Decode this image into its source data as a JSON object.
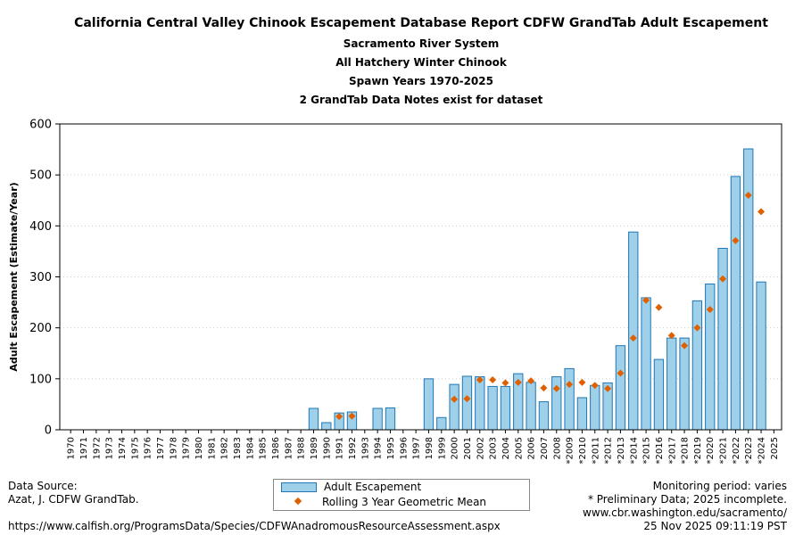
{
  "title": {
    "line1": "California Central Valley Chinook Escapement Database Report CDFW GrandTab Adult Escapement",
    "line2": "Sacramento River System",
    "line3": "All Hatchery Winter Chinook",
    "line4": "Spawn Years 1970-2025",
    "line5": "2 GrandTab Data Notes exist for dataset"
  },
  "colors": {
    "bar_fill": "#9fd0ea",
    "bar_edge": "#1f77b4",
    "point": "#e06000"
  },
  "chart_data": {
    "type": "bar",
    "ylabel": "Adult Escapement (Estimate/Year)",
    "ylim": [
      0,
      600
    ],
    "yticks": [
      0,
      100,
      200,
      300,
      400,
      500,
      600
    ],
    "grid": "horizontal dotted",
    "legend_placement": "bottom-center",
    "categories": [
      "1970",
      "1971",
      "1972",
      "1973",
      "1974",
      "1975",
      "1976",
      "1977",
      "1978",
      "1979",
      "1980",
      "1981",
      "1982",
      "1983",
      "1984",
      "1985",
      "1986",
      "1987",
      "1988",
      "1989",
      "1990",
      "1991",
      "1992",
      "1993",
      "1994",
      "1995",
      "1996",
      "1997",
      "1998",
      "1999",
      "2000",
      "2001",
      "2002",
      "2003",
      "2004",
      "2005",
      "2006",
      "2007",
      "2008",
      "*2009",
      "*2010",
      "*2011",
      "*2012",
      "*2013",
      "*2014",
      "*2015",
      "*2016",
      "*2017",
      "*2018",
      "*2019",
      "*2020",
      "*2021",
      "*2022",
      "*2023",
      "*2024",
      "2025"
    ],
    "series": [
      {
        "name": "Adult Escapement",
        "kind": "bar",
        "values": [
          null,
          null,
          null,
          null,
          null,
          null,
          null,
          null,
          null,
          null,
          null,
          null,
          null,
          null,
          null,
          null,
          null,
          null,
          null,
          42,
          14,
          33,
          35,
          null,
          42,
          43,
          null,
          null,
          100,
          24,
          89,
          105,
          104,
          85,
          85,
          110,
          93,
          55,
          104,
          120,
          63,
          87,
          92,
          165,
          388,
          259,
          138,
          180,
          180,
          253,
          286,
          356,
          497,
          551,
          290,
          null
        ]
      },
      {
        "name": "Rolling 3 Year Geometric Mean",
        "kind": "point",
        "values": [
          null,
          null,
          null,
          null,
          null,
          null,
          null,
          null,
          null,
          null,
          null,
          null,
          null,
          null,
          null,
          null,
          null,
          null,
          null,
          null,
          null,
          26,
          27,
          null,
          null,
          null,
          null,
          null,
          null,
          null,
          60,
          61,
          98,
          98,
          92,
          93,
          96,
          82,
          81,
          89,
          93,
          87,
          81,
          111,
          180,
          254,
          240,
          185,
          165,
          200,
          236,
          296,
          371,
          460,
          428,
          null
        ]
      }
    ]
  },
  "footer": {
    "data_source_label": "Data Source:",
    "data_source": "Azat, J. CDFW GrandTab.",
    "url": "https://www.calfish.org/ProgramsData/Species/CDFWAnadromousResourceAssessment.aspx",
    "monitoring": "Monitoring period: varies",
    "preliminary": "* Preliminary Data; 2025 incomplete.",
    "site": "www.cbr.washington.edu/sacramento/",
    "timestamp": "25 Nov 2025 09:11:19 PST"
  }
}
